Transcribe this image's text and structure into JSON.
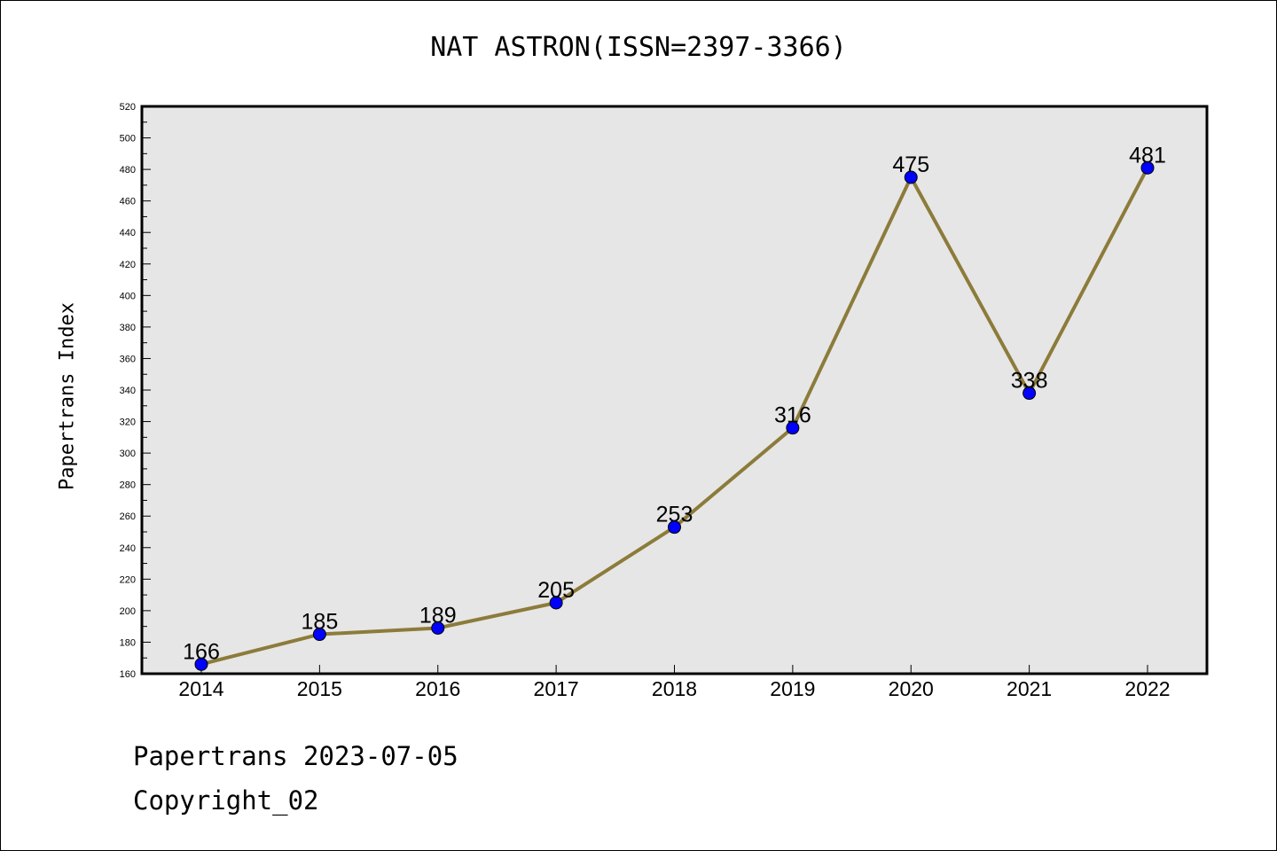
{
  "title": "NAT ASTRON(ISSN=2397-3366)",
  "footer": {
    "line1": "Papertrans 2023-07-05",
    "line2": "Copyright_02"
  },
  "chart_data": {
    "type": "line",
    "title": "NAT ASTRON(ISSN=2397-3366)",
    "xlabel": "",
    "ylabel": "Papertrans Index",
    "categories": [
      "2014",
      "2015",
      "2016",
      "2017",
      "2018",
      "2019",
      "2020",
      "2021",
      "2022"
    ],
    "series": [
      {
        "values": [
          166,
          185,
          189,
          205,
          253,
          316,
          475,
          338,
          481
        ]
      }
    ],
    "ylim": [
      160,
      520
    ],
    "yticks": [
      160,
      180,
      200,
      220,
      240,
      260,
      280,
      300,
      320,
      340,
      360,
      380,
      400,
      420,
      440,
      460,
      480,
      500,
      520
    ],
    "line_color": "#8c7b3a",
    "marker_color": "#0000ff",
    "plot_background": "#e6e6e6",
    "grid": false,
    "legend": "none"
  }
}
